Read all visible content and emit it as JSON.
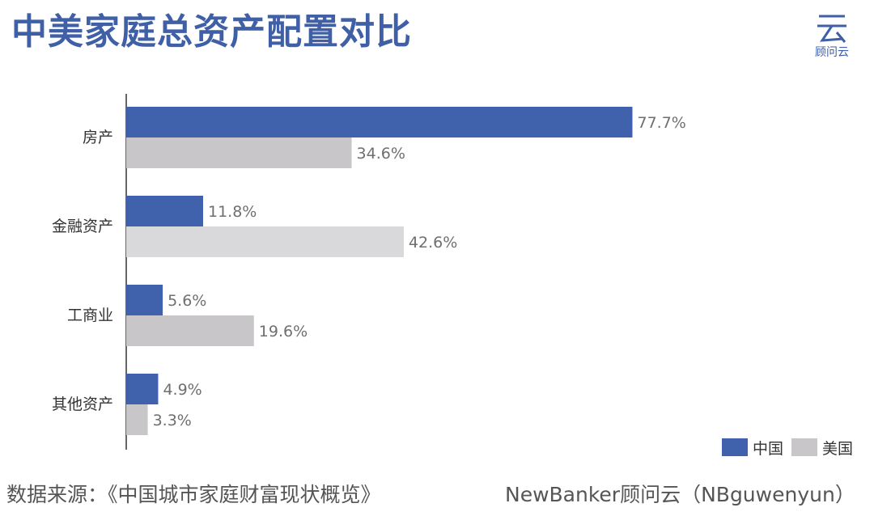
{
  "title": "中美家庭总资产配置对比",
  "logo": {
    "text": "顾问云",
    "icon": "cloud-glyph-icon",
    "color": "#3f5fa6"
  },
  "colors": {
    "china": "#4062ad",
    "us": "#c8c6c9",
    "us_highlight": "#d9d8db",
    "axis": "#333333"
  },
  "chart_data": {
    "type": "bar",
    "orientation": "horizontal",
    "categories": [
      "房产",
      "金融资产",
      "工商业",
      "其他资产"
    ],
    "series": [
      {
        "name": "中国",
        "values": [
          77.7,
          11.8,
          5.6,
          4.9
        ],
        "labels": [
          "77.7%",
          "11.8%",
          "5.6%",
          "4.9%"
        ]
      },
      {
        "name": "美国",
        "values": [
          34.6,
          42.6,
          19.6,
          3.3
        ],
        "labels": [
          "34.6%",
          "42.6%",
          "19.6%",
          "3.3%"
        ]
      }
    ],
    "title": "中美家庭总资产配置对比",
    "xlim": [
      0,
      100
    ],
    "grid": false,
    "legend": "bottom-right"
  },
  "legend": {
    "china": "中国",
    "us": "美国"
  },
  "footer": {
    "source": "数据来源：《中国城市家庭财富现状概览》",
    "credit": "NewBanker顾问云（NBguwenyun）"
  }
}
